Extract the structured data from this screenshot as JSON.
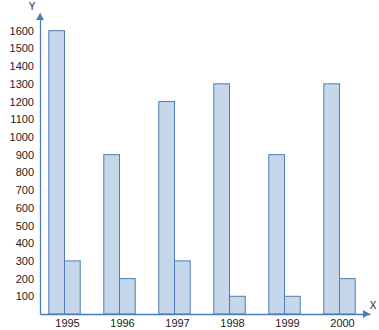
{
  "chart_data": {
    "type": "bar",
    "x_label": "X",
    "y_label": "Y",
    "categories": [
      "1995",
      "1996",
      "1997",
      "1998",
      "1999",
      "2000"
    ],
    "series": [
      {
        "color": "#c6d7ec",
        "values": [
          1600,
          900,
          1200,
          1300,
          900,
          1300
        ]
      },
      {
        "color": "#c6d7ec",
        "values": [
          300,
          200,
          300,
          100,
          100,
          200
        ]
      }
    ],
    "ylim": [
      0,
      1700
    ],
    "yticks": [
      100,
      200,
      300,
      400,
      500,
      600,
      700,
      800,
      900,
      1000,
      1100,
      1200,
      1300,
      1400,
      1500,
      1600
    ],
    "grid": false
  }
}
